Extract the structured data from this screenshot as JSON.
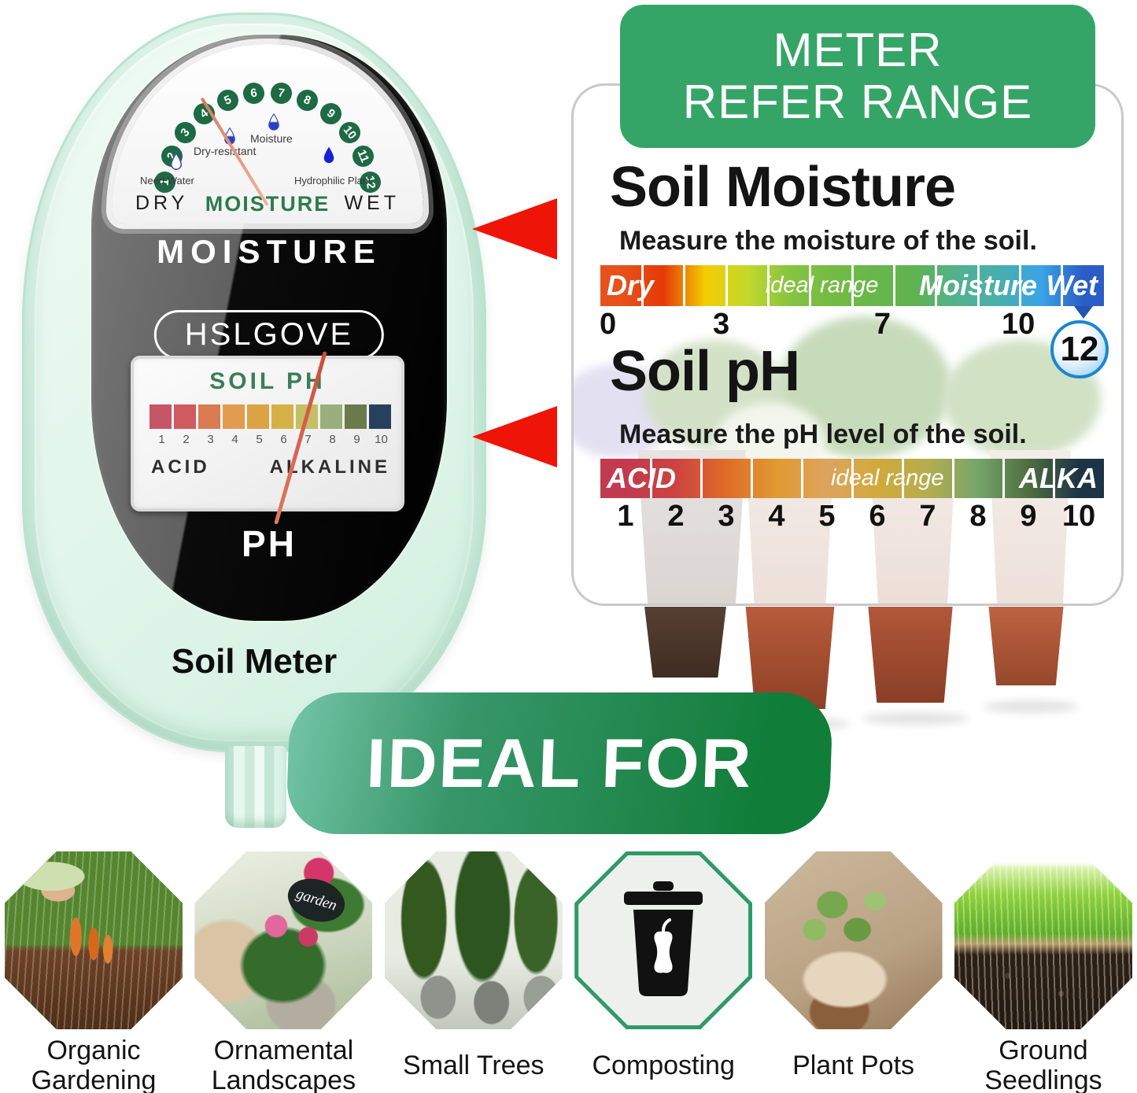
{
  "device": {
    "brand": "HSLGOVE",
    "product_name": "Soil Meter",
    "face_moisture_label": "MOISTURE",
    "face_ph_label": "PH",
    "moisture_gauge": {
      "ticks": [
        "1",
        "2",
        "3",
        "4",
        "5",
        "6",
        "7",
        "8",
        "9",
        "10",
        "11",
        "12"
      ],
      "arc_colors": [
        "#dd3b20",
        "#e4711c",
        "#eeb414",
        "#ead814",
        "#9cc62c",
        "#5bb748",
        "#46b055",
        "#3fae7a",
        "#3aacab",
        "#37a4da",
        "#2f7ccc",
        "#2758b6"
      ],
      "tick_circle_color": "#1d6a45",
      "needle_value": 4.4,
      "zone_labels": {
        "left": "DRY",
        "center": "MOISTURE",
        "right": "WET"
      },
      "annotations": [
        {
          "text": "Need Water",
          "drop": "outline"
        },
        {
          "text": "Dry-resistant",
          "drop": "half"
        },
        {
          "text": "Moisture",
          "drop": "half"
        },
        {
          "text": "Hydrophilic Plant",
          "drop": "solid"
        }
      ]
    },
    "ph_gauge": {
      "title": "SOIL PH",
      "segment_colors": [
        "#c75568",
        "#d05a60",
        "#db7b52",
        "#e29c4d",
        "#dca344",
        "#d6b148",
        "#c5bf63",
        "#9aaf7c",
        "#6b7a4a",
        "#27405c"
      ],
      "ticks": [
        "1",
        "2",
        "3",
        "4",
        "5",
        "6",
        "7",
        "8",
        "9",
        "10"
      ],
      "acid_label": "ACID",
      "alkaline_label": "ALKALINE",
      "needle_value": 7
    }
  },
  "refer_panel": {
    "banner_line1": "METER",
    "banner_line2": "REFER RANGE",
    "banner_color": "#35a567",
    "moisture": {
      "title": "Soil Moisture",
      "subtitle": "Measure the moisture of the soil.",
      "scale": {
        "type": "color-scale",
        "segment_colors": [
          "#e7511c",
          "#e63a07",
          "#f2cd04",
          "#c3d82b",
          "#86c440",
          "#74bb44",
          "#68b74a",
          "#5fb350",
          "#52b18e",
          "#47afac",
          "#3aa4e6",
          "#2a5ec6"
        ],
        "labels": [
          {
            "text": "Dry",
            "pos": "start",
            "style": "big"
          },
          {
            "text": "ideal range",
            "pos": "center",
            "center_at": "44%",
            "style": "small"
          },
          {
            "text": "Moisture",
            "pos": "center",
            "center_at": "75%",
            "style": "big"
          },
          {
            "text": "Wet",
            "pos": "end",
            "style": "big"
          }
        ],
        "ticks": [
          {
            "label": "0",
            "left": "1.5%"
          },
          {
            "label": "3",
            "left": "24%"
          },
          {
            "label": "7",
            "left": "56%"
          },
          {
            "label": "10",
            "left": "83%"
          }
        ],
        "marker": {
          "label": "12"
        }
      }
    },
    "ph": {
      "title": "Soil pH",
      "subtitle": "Measure the pH level of the soil.",
      "scale": {
        "type": "color-scale",
        "segment_colors": [
          "#c23a4e",
          "#cc4342",
          "#df6b28",
          "#e19a31",
          "#dba45f",
          "#d2a93c",
          "#b4ad4e",
          "#75a56b",
          "#4e6e3f",
          "#1d3446"
        ],
        "labels": [
          {
            "text": "ACID",
            "pos": "start",
            "style": "big"
          },
          {
            "text": "ideal range",
            "pos": "center",
            "center_at": "57%",
            "style": "small"
          },
          {
            "text": "ALKA",
            "pos": "end",
            "style": "big"
          }
        ],
        "ticks": [
          "1",
          "2",
          "3",
          "4",
          "5",
          "6",
          "7",
          "8",
          "9",
          "10"
        ]
      }
    }
  },
  "ideal_for": {
    "banner": "IDEAL FOR",
    "items": [
      {
        "label": "Organic\nGardening",
        "photo": "organic"
      },
      {
        "label": "Ornamental\nLandscapes",
        "photo": "ornamental",
        "photo_tag": "garden"
      },
      {
        "label": "Small Trees",
        "photo": "trees"
      },
      {
        "label": "Composting",
        "photo": "compost"
      },
      {
        "label": "Plant Pots",
        "photo": "pots"
      },
      {
        "label": "Ground\nSeedlings",
        "photo": "seedlings"
      }
    ]
  }
}
